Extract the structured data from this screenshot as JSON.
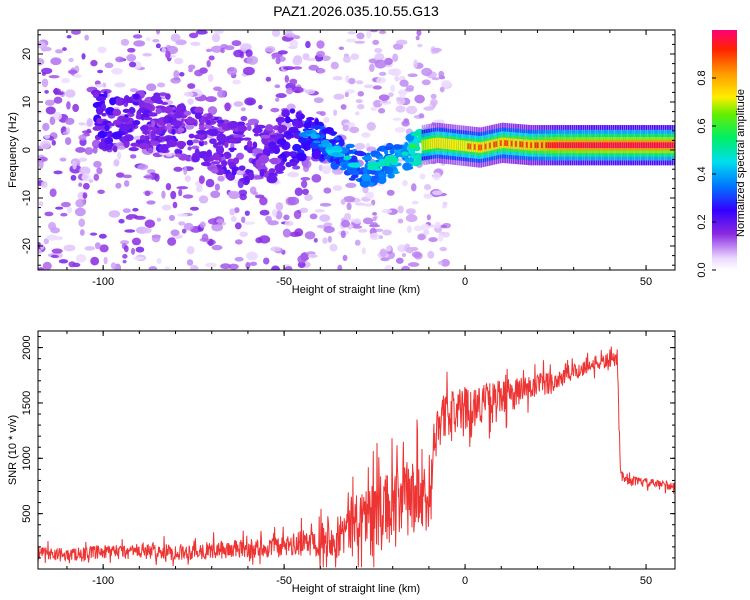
{
  "title": "PAZ1.2026.035.10.55.G13",
  "colors": {
    "snr_line": "#ee3333",
    "axis": "#000000",
    "background": "#ffffff"
  },
  "chart_data": [
    {
      "type": "heatmap",
      "xlabel": "Height of straight line (km)",
      "ylabel": "Frequency (Hz)",
      "xlim": [
        -118,
        58
      ],
      "ylim": [
        -25,
        25
      ],
      "xticks": [
        -100,
        -50,
        0,
        50
      ],
      "yticks": [
        -20,
        -10,
        0,
        10,
        20
      ],
      "colorbar": {
        "label": "Normalized spectral amplitude",
        "range": [
          0,
          1
        ],
        "ticks": [
          0.0,
          0.2,
          0.4,
          0.6,
          0.8
        ],
        "tick_labels": [
          "0.0",
          "0.2",
          "0.4",
          "0.6",
          "0.8"
        ],
        "colormap": "rainbow (violet to red)"
      },
      "ridge": [
        {
          "x": -97,
          "f": 6,
          "amp": 0.25
        },
        {
          "x": -88,
          "f": 6,
          "amp": 0.22
        },
        {
          "x": -80,
          "f": 5,
          "amp": 0.22
        },
        {
          "x": -72,
          "f": 2,
          "amp": 0.2
        },
        {
          "x": -65,
          "f": 0,
          "amp": 0.22
        },
        {
          "x": -55,
          "f": -1,
          "amp": 0.2
        },
        {
          "x": -45,
          "f": 4,
          "amp": 0.3
        },
        {
          "x": -40,
          "f": 2,
          "amp": 0.32
        },
        {
          "x": -33,
          "f": -2,
          "amp": 0.38
        },
        {
          "x": -28,
          "f": -4,
          "amp": 0.38
        },
        {
          "x": -22,
          "f": -3,
          "amp": 0.4
        },
        {
          "x": -17,
          "f": -1,
          "amp": 0.42
        },
        {
          "x": -12,
          "f": 1,
          "amp": 0.55
        },
        {
          "x": -8,
          "f": 1.5,
          "amp": 0.7
        },
        {
          "x": -2,
          "f": 1,
          "amp": 0.65
        },
        {
          "x": 4,
          "f": 0.5,
          "amp": 0.7
        },
        {
          "x": 10,
          "f": 1.5,
          "amp": 0.72
        },
        {
          "x": 18,
          "f": 1,
          "amp": 0.75
        },
        {
          "x": 25,
          "f": 1,
          "amp": 0.9
        },
        {
          "x": 40,
          "f": 1,
          "amp": 0.95
        },
        {
          "x": 58,
          "f": 1,
          "amp": 0.95
        }
      ]
    },
    {
      "type": "line",
      "xlabel": "Height of straight line (km)",
      "ylabel": "SNR (10 * v/v)",
      "xlim": [
        -118,
        58
      ],
      "ylim": [
        0,
        2150
      ],
      "xticks": [
        -100,
        -50,
        0,
        50
      ],
      "yticks": [
        500,
        1000,
        1500,
        2000
      ],
      "series": [
        {
          "name": "SNR",
          "x": [
            -118,
            -110,
            -100,
            -90,
            -80,
            -70,
            -60,
            -50,
            -45,
            -40,
            -35,
            -32,
            -30,
            -27,
            -24,
            -21,
            -18,
            -15,
            -12,
            -10,
            -9,
            -8,
            -5,
            0,
            5,
            10,
            15,
            20,
            25,
            30,
            35,
            40,
            42,
            43,
            45,
            50,
            55,
            58
          ],
          "mean": [
            150,
            130,
            150,
            160,
            150,
            170,
            180,
            200,
            230,
            280,
            300,
            380,
            450,
            500,
            520,
            560,
            600,
            650,
            650,
            500,
            1100,
            1300,
            1400,
            1450,
            1500,
            1550,
            1600,
            1650,
            1700,
            1780,
            1850,
            1880,
            1900,
            850,
            800,
            780,
            760,
            750
          ],
          "noise": [
            70,
            70,
            80,
            90,
            90,
            100,
            110,
            120,
            150,
            200,
            250,
            300,
            350,
            380,
            400,
            400,
            420,
            450,
            450,
            300,
            300,
            300,
            250,
            250,
            220,
            200,
            180,
            150,
            130,
            100,
            90,
            80,
            80,
            60,
            50,
            50,
            50,
            50
          ]
        }
      ]
    }
  ]
}
